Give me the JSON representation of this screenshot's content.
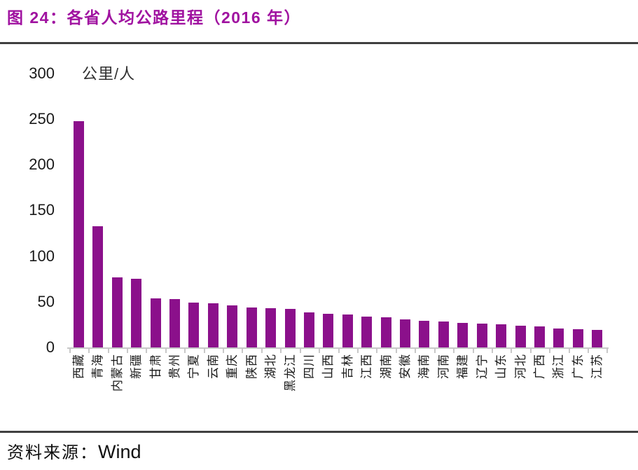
{
  "header": {
    "title": "图 24：各省人均公路里程（2016 年）"
  },
  "footer": {
    "source_label": "资料来源：",
    "source_value": "Wind"
  },
  "chart_data": {
    "type": "bar",
    "title": "各省人均公路里程（2016 年）",
    "unit_label": "公里/人",
    "categories": [
      "西藏",
      "青海",
      "内蒙古",
      "新疆",
      "甘肃",
      "贵州",
      "宁夏",
      "云南",
      "重庆",
      "陕西",
      "湖北",
      "黑龙江",
      "四川",
      "山西",
      "吉林",
      "江西",
      "湖南",
      "安徽",
      "海南",
      "河南",
      "福建",
      "辽宁",
      "山东",
      "河北",
      "广西",
      "浙江",
      "广东",
      "江苏"
    ],
    "values": [
      248,
      133,
      77,
      75,
      54,
      53,
      49,
      48,
      46,
      44,
      43,
      42,
      38,
      37,
      36,
      34,
      33,
      31,
      29,
      28,
      27,
      26,
      25,
      24,
      23,
      21,
      20,
      19
    ],
    "xlabel": "",
    "ylabel": "公里/人",
    "ylim": [
      0,
      300
    ],
    "yticks": [
      0,
      50,
      100,
      150,
      200,
      250,
      300
    ],
    "grid": false,
    "legend": "none",
    "bar_color": "#8B108B",
    "title_color": "#A012A0",
    "axis_color": "#C8C8C8",
    "rule_color": "#404040",
    "source": "Wind"
  }
}
